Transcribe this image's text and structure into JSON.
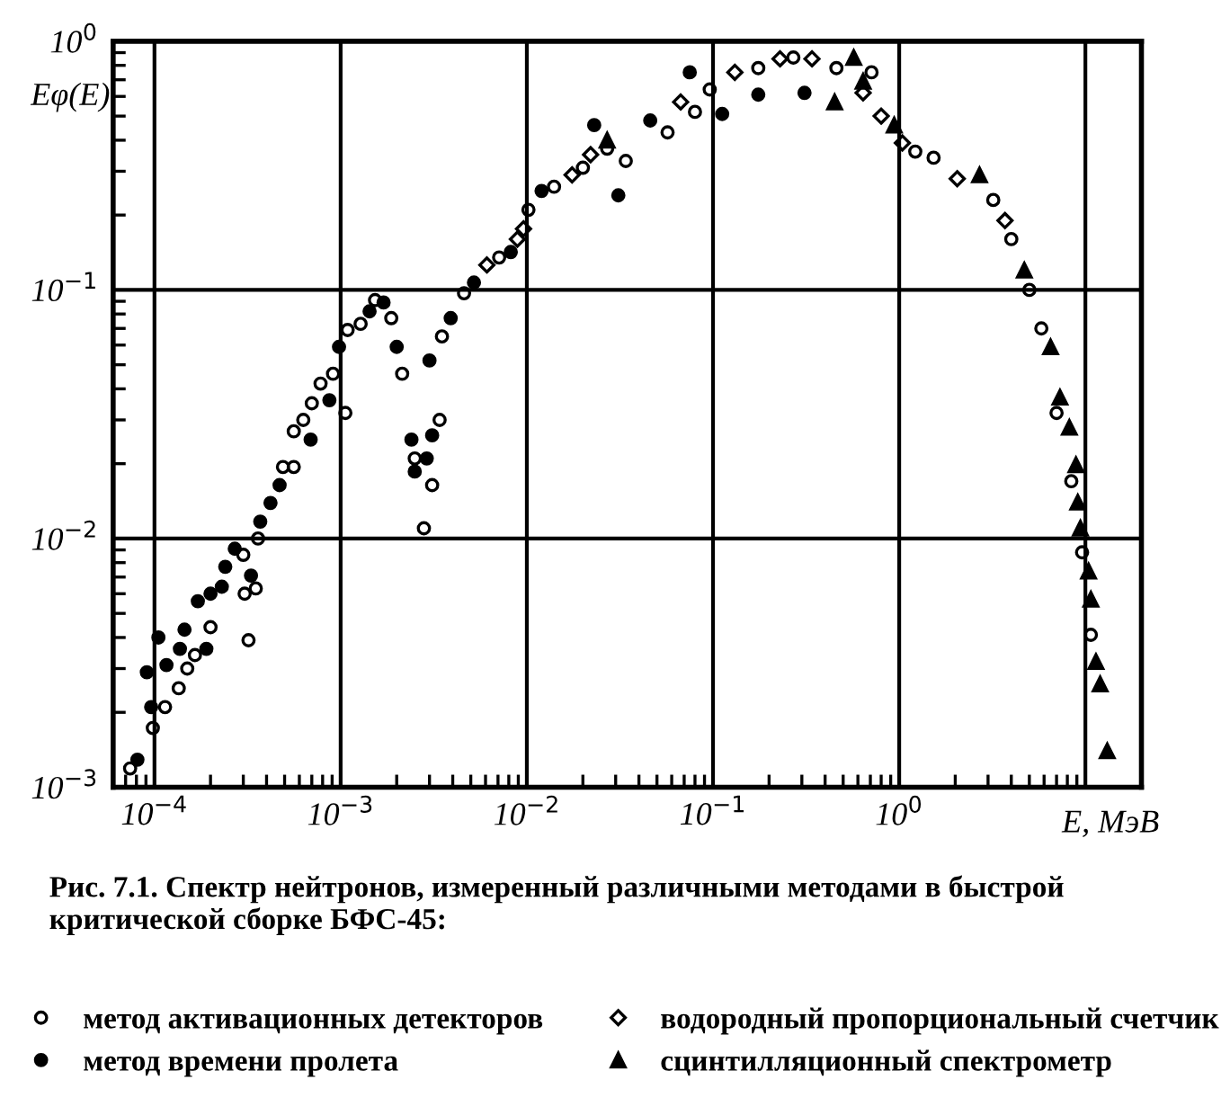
{
  "chart_data": {
    "type": "scatter",
    "xlabel": "E, МэВ",
    "ylabel": "Eφ(E)",
    "annotations": [
      "Рис. 7.1. Спектр нейтронов, измеренный различными методами в быстрой критической сборке БФС-45:"
    ],
    "log": "xy",
    "grid": true,
    "legend": "bottom",
    "xlim": [
      6e-05,
      20
    ],
    "ylim": [
      0.001,
      1
    ],
    "xticks": [
      {
        "value": 0.0001,
        "label": "10$^{−4}$"
      },
      {
        "value": 0.001,
        "label": "10$^{−3}$"
      },
      {
        "value": 0.01,
        "label": "10$^{−2}$"
      },
      {
        "value": 0.1,
        "label": "10$^{−1}$"
      },
      {
        "value": 1,
        "label": "10$^{0}$"
      },
      {
        "value": 10,
        "label": null
      }
    ],
    "yticks": [
      {
        "value": 0.001,
        "label": "10$^{−3}$"
      },
      {
        "value": 0.01,
        "label": "10$^{−2}$"
      },
      {
        "value": 0.1,
        "label": "10$^{−1}$"
      },
      {
        "value": 1,
        "label": "10$^{0}$"
      }
    ],
    "series": [
      {
        "name": "метод активационных детекторов",
        "color": "#000000",
        "marker": "circle",
        "x": [
          7.4e-05,
          9.8e-05,
          0.000114,
          0.000135,
          0.00015,
          0.000165,
          0.0002,
          0.000305,
          0.00032,
          0.00035,
          0.0003,
          0.00036,
          0.00049,
          0.00056,
          0.00056,
          0.00063,
          0.0007,
          0.00078,
          0.00091,
          0.00106,
          0.00109,
          0.00128,
          0.00153,
          0.00187,
          0.00214,
          0.0025,
          0.0028,
          0.0031,
          0.0034,
          0.0035,
          0.0046,
          0.0071,
          0.0102,
          0.014,
          0.02,
          0.027,
          0.034,
          0.057,
          0.08,
          0.096,
          0.175,
          0.27,
          0.46,
          0.71,
          1.22,
          1.53,
          3.2,
          4.0,
          5.0,
          5.8,
          7.0,
          8.4,
          9.6,
          10.7
        ],
        "values": [
          0.00119,
          0.00173,
          0.0021,
          0.0025,
          0.003,
          0.0034,
          0.0044,
          0.006,
          0.0039,
          0.0063,
          0.0086,
          0.01,
          0.0194,
          0.0194,
          0.027,
          0.03,
          0.035,
          0.042,
          0.046,
          0.032,
          0.069,
          0.073,
          0.091,
          0.077,
          0.046,
          0.021,
          0.011,
          0.0164,
          0.03,
          0.065,
          0.097,
          0.135,
          0.21,
          0.26,
          0.31,
          0.37,
          0.33,
          0.43,
          0.52,
          0.64,
          0.78,
          0.86,
          0.78,
          0.75,
          0.36,
          0.34,
          0.23,
          0.16,
          0.1,
          0.07,
          0.032,
          0.017,
          0.0088,
          0.0041
        ]
      },
      {
        "name": "метод времени пролета",
        "color": "#000000",
        "marker": "circle",
        "x": [
          8.1e-05,
          9.1e-05,
          9.6e-05,
          0.000105,
          0.000116,
          0.000137,
          0.000145,
          0.00019,
          0.000171,
          0.0002,
          0.00023,
          0.00024,
          0.00027,
          0.00033,
          0.00037,
          0.00042,
          0.00047,
          0.00069,
          0.00087,
          0.00098,
          0.00143,
          0.0017,
          0.002,
          0.0024,
          0.0025,
          0.0029,
          0.0031,
          0.003,
          0.0039,
          0.0052,
          0.0082,
          0.012,
          0.023,
          0.031,
          0.046,
          0.075,
          0.112,
          0.175,
          0.31
        ],
        "values": [
          0.00129,
          0.0029,
          0.0021,
          0.004,
          0.0031,
          0.0036,
          0.0043,
          0.0036,
          0.0056,
          0.006,
          0.0064,
          0.0077,
          0.0091,
          0.0071,
          0.0117,
          0.0139,
          0.0164,
          0.025,
          0.036,
          0.059,
          0.082,
          0.089,
          0.059,
          0.025,
          0.0186,
          0.021,
          0.026,
          0.052,
          0.077,
          0.107,
          0.142,
          0.25,
          0.46,
          0.24,
          0.48,
          0.75,
          0.51,
          0.61,
          0.62
        ]
      },
      {
        "name": "водородный пропорциональный счетчик",
        "color": "#000000",
        "marker": "diamond",
        "x": [
          0.0061,
          0.0089,
          0.0096,
          0.0175,
          0.022,
          0.067,
          0.131,
          0.229,
          0.34,
          0.64,
          0.8,
          1.04,
          2.05,
          3.7
        ],
        "values": [
          0.126,
          0.16,
          0.176,
          0.29,
          0.35,
          0.57,
          0.75,
          0.85,
          0.85,
          0.62,
          0.5,
          0.39,
          0.28,
          0.19
        ]
      },
      {
        "name": "сцинтилляционный спектрометр",
        "color": "#000000",
        "marker": "triangle",
        "x": [
          0.027,
          0.45,
          0.57,
          0.64,
          0.94,
          2.7,
          4.7,
          6.5,
          7.3,
          8.2,
          8.9,
          9.1,
          9.4,
          10.4,
          10.7,
          11.4,
          12.0,
          13.1
        ],
        "values": [
          0.4,
          0.57,
          0.86,
          0.69,
          0.46,
          0.29,
          0.12,
          0.059,
          0.037,
          0.028,
          0.0198,
          0.014,
          0.011,
          0.0074,
          0.0057,
          0.0032,
          0.0026,
          0.0014
        ]
      }
    ]
  }
}
